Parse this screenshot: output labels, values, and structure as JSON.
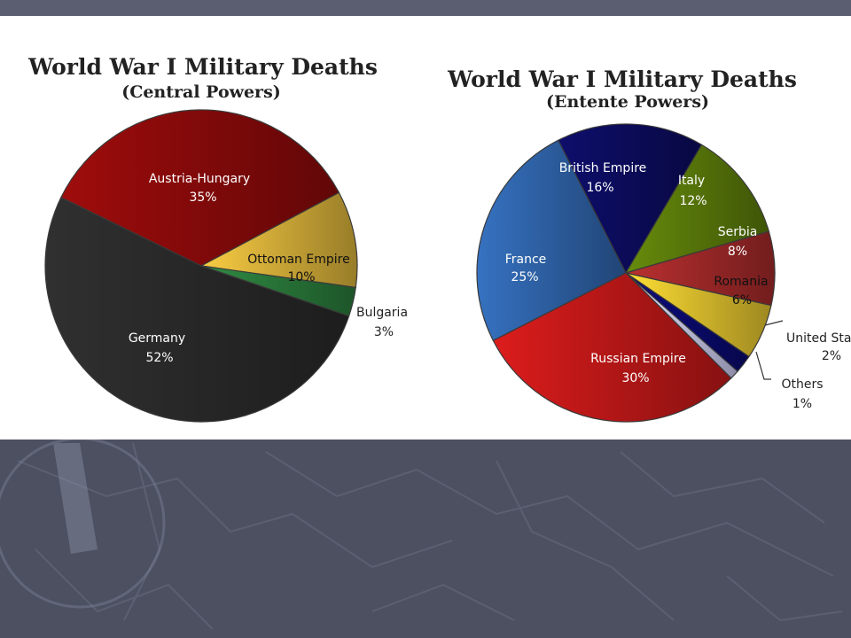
{
  "chart_data": [
    {
      "type": "pie",
      "title": "World War I Military Deaths",
      "subtitle": "(Central Powers)",
      "slices": [
        {
          "label": "Austria-Hungary",
          "value": 35,
          "value_label": "35%",
          "color": "#8b0a0a"
        },
        {
          "label": "Ottoman Empire",
          "value": 10,
          "value_label": "10%",
          "color": "#d9b23a"
        },
        {
          "label": "Bulgaria",
          "value": 3,
          "value_label": "3%",
          "color": "#2a7a3a"
        },
        {
          "label": "Germany",
          "value": 52,
          "value_label": "52%",
          "color": "#2a2a2a"
        }
      ]
    },
    {
      "type": "pie",
      "title": "World War I Military Deaths",
      "subtitle": "(Entente Powers)",
      "slices": [
        {
          "label": "British Empire",
          "value": 16,
          "value_label": "16%",
          "color": "#0c0c5e"
        },
        {
          "label": "Italy",
          "value": 12,
          "value_label": "12%",
          "color": "#5a7a0a"
        },
        {
          "label": "Serbia",
          "value": 8,
          "value_label": "8%",
          "color": "#a32a2a"
        },
        {
          "label": "Romania",
          "value": 6,
          "value_label": "6%",
          "color": "#e2c22e"
        },
        {
          "label": "United States",
          "value": 2,
          "value_label": "2%",
          "color": "#0a0a6e"
        },
        {
          "label": "Others",
          "value": 1,
          "value_label": "1%",
          "color": "#c8c8f0"
        },
        {
          "label": "Russian Empire",
          "value": 30,
          "value_label": "30%",
          "color": "#c01818"
        },
        {
          "label": "France",
          "value": 25,
          "value_label": "25%",
          "color": "#2f63a8"
        }
      ]
    }
  ]
}
